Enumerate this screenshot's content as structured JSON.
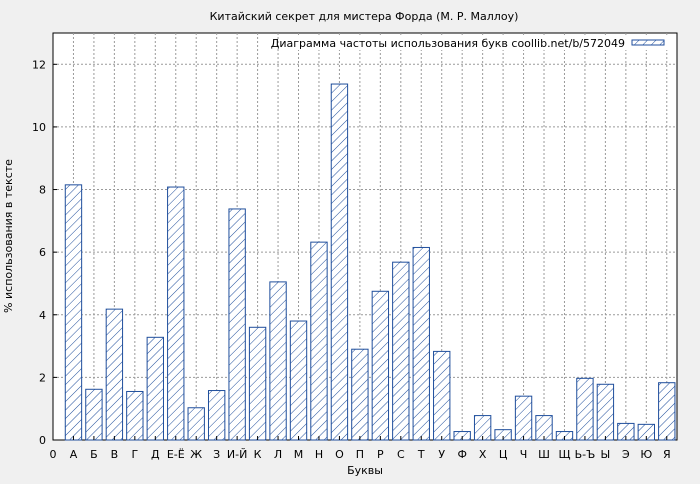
{
  "chart_data": {
    "type": "bar",
    "title": "Китайский секрет для мистера Форда (М. Р. Маллоу)",
    "xlabel": "Буквы",
    "ylabel": "% использования в тексте",
    "ylim": [
      0,
      13
    ],
    "yticks": [
      0,
      2,
      4,
      6,
      8,
      10,
      12
    ],
    "grid": true,
    "legend_position": "top-right",
    "categories": [
      "А",
      "Б",
      "В",
      "Г",
      "Д",
      "Е-Ё",
      "Ж",
      "З",
      "И-Й",
      "К",
      "Л",
      "М",
      "Н",
      "О",
      "П",
      "Р",
      "С",
      "Т",
      "У",
      "Ф",
      "Х",
      "Ц",
      "Ч",
      "Ш",
      "Щ",
      "Ь-Ъ",
      "Ы",
      "Э",
      "Ю",
      "Я"
    ],
    "x_axis_start_label": "0",
    "series": [
      {
        "name": "Диаграмма частоты использования букв coollib.net/b/572049",
        "values": [
          8.15,
          1.62,
          4.18,
          1.55,
          3.28,
          8.08,
          1.03,
          1.58,
          7.38,
          3.6,
          5.05,
          3.8,
          6.32,
          11.37,
          2.9,
          4.75,
          5.68,
          6.15,
          2.83,
          0.27,
          0.78,
          0.33,
          1.4,
          0.78,
          0.27,
          1.97,
          1.78,
          0.53,
          0.5,
          1.83
        ]
      }
    ],
    "colors": {
      "bar_stroke": "#1f4e9c",
      "hatch": "#1f4e9c",
      "bar_fill": "#ffffff",
      "grid": "#9a9a9a"
    }
  }
}
